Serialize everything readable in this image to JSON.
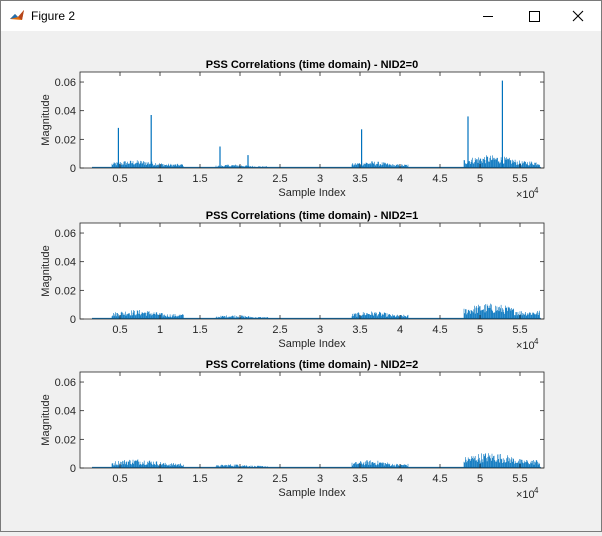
{
  "window": {
    "title": "Figure 2",
    "icons": {
      "app": "matlab-figure-icon",
      "minimize": "minimize-icon",
      "maximize": "maximize-icon",
      "close": "close-icon"
    }
  },
  "chart_data": [
    {
      "type": "line",
      "title": "PSS Correlations (time domain) - NID2=0",
      "xlabel": "Sample Index",
      "ylabel": "Magnitude",
      "xlim": [
        0,
        58000
      ],
      "ylim": [
        0,
        0.067
      ],
      "x_ticks": [
        5000,
        10000,
        15000,
        20000,
        25000,
        30000,
        35000,
        40000,
        45000,
        50000,
        55000
      ],
      "x_tick_labels": [
        "0.5",
        "1",
        "1.5",
        "2",
        "2.5",
        "3",
        "3.5",
        "4",
        "4.5",
        "5",
        "5.5"
      ],
      "y_ticks": [
        0,
        0.02,
        0.04,
        0.06
      ],
      "y_tick_labels": [
        "0",
        "0.02",
        "0.04",
        "0.06"
      ],
      "x_exponent": "×10",
      "x_exponent_power": "4",
      "color": "#0072bd",
      "noise_segments": [
        {
          "x": [
            4000,
            13000
          ],
          "level": 0.0055
        },
        {
          "x": [
            17000,
            23500
          ],
          "level": 0.0025
        },
        {
          "x": [
            34000,
            41000
          ],
          "level": 0.0048
        },
        {
          "x": [
            48000,
            57500
          ],
          "level": 0.009
        }
      ],
      "peaks": [
        {
          "x": 4800,
          "y": 0.028
        },
        {
          "x": 8900,
          "y": 0.037
        },
        {
          "x": 17500,
          "y": 0.015
        },
        {
          "x": 21000,
          "y": 0.009
        },
        {
          "x": 35200,
          "y": 0.027
        },
        {
          "x": 48500,
          "y": 0.036
        },
        {
          "x": 52800,
          "y": 0.061
        }
      ]
    },
    {
      "type": "line",
      "title": "PSS Correlations (time domain) - NID2=1",
      "xlabel": "Sample Index",
      "ylabel": "Magnitude",
      "xlim": [
        0,
        58000
      ],
      "ylim": [
        0,
        0.067
      ],
      "x_ticks": [
        5000,
        10000,
        15000,
        20000,
        25000,
        30000,
        35000,
        40000,
        45000,
        50000,
        55000
      ],
      "x_tick_labels": [
        "0.5",
        "1",
        "1.5",
        "2",
        "2.5",
        "3",
        "3.5",
        "4",
        "4.5",
        "5",
        "5.5"
      ],
      "y_ticks": [
        0,
        0.02,
        0.04,
        0.06
      ],
      "y_tick_labels": [
        "0",
        "0.02",
        "0.04",
        "0.06"
      ],
      "x_exponent": "×10",
      "x_exponent_power": "4",
      "color": "#0072bd",
      "noise_segments": [
        {
          "x": [
            4000,
            13000
          ],
          "level": 0.0065
        },
        {
          "x": [
            17000,
            23500
          ],
          "level": 0.0028
        },
        {
          "x": [
            34000,
            41000
          ],
          "level": 0.0055
        },
        {
          "x": [
            48000,
            57500
          ],
          "level": 0.011
        }
      ],
      "peaks": []
    },
    {
      "type": "line",
      "title": "PSS Correlations (time domain) - NID2=2",
      "xlabel": "Sample Index",
      "ylabel": "Magnitude",
      "xlim": [
        0,
        58000
      ],
      "ylim": [
        0,
        0.067
      ],
      "x_ticks": [
        5000,
        10000,
        15000,
        20000,
        25000,
        30000,
        35000,
        40000,
        45000,
        50000,
        55000
      ],
      "x_tick_labels": [
        "0.5",
        "1",
        "1.5",
        "2",
        "2.5",
        "3",
        "3.5",
        "4",
        "4.5",
        "5",
        "5.5"
      ],
      "y_ticks": [
        0,
        0.02,
        0.04,
        0.06
      ],
      "y_tick_labels": [
        "0",
        "0.02",
        "0.04",
        "0.06"
      ],
      "x_exponent": "×10",
      "x_exponent_power": "4",
      "color": "#0072bd",
      "noise_segments": [
        {
          "x": [
            4000,
            13000
          ],
          "level": 0.0065
        },
        {
          "x": [
            17000,
            23500
          ],
          "level": 0.0028
        },
        {
          "x": [
            34000,
            41000
          ],
          "level": 0.0055
        },
        {
          "x": [
            48000,
            57500
          ],
          "level": 0.011
        }
      ],
      "peaks": []
    }
  ]
}
